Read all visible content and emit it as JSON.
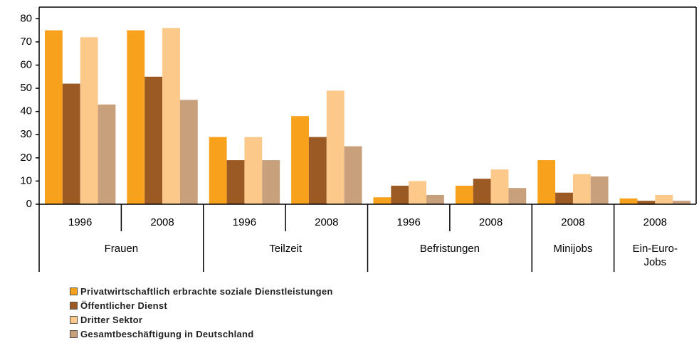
{
  "chart_data": {
    "type": "bar",
    "groups": [
      {
        "name": "Frauen",
        "categories": [
          "1996",
          "2008"
        ]
      },
      {
        "name": "Teilzeit",
        "categories": [
          "1996",
          "2008"
        ]
      },
      {
        "name": "Befristungen",
        "categories": [
          "1996",
          "2008"
        ]
      },
      {
        "name": "Minijobs",
        "categories": [
          "2008"
        ]
      },
      {
        "name": "Ein-Euro-Jobs",
        "categories": [
          "2008"
        ]
      }
    ],
    "series": [
      {
        "name": "Privatwirtschaftlich erbrachte soziale Dienstleistungen",
        "color": "#f7a11c",
        "values": [
          75,
          75,
          29,
          38,
          3,
          8,
          19,
          2.5
        ]
      },
      {
        "name": "Öffentlicher Dienst",
        "color": "#9b5a24",
        "values": [
          52,
          55,
          19,
          29,
          8,
          11,
          5,
          1.5
        ]
      },
      {
        "name": "Dritter Sektor",
        "color": "#fcc98a",
        "values": [
          72,
          76,
          29,
          49,
          10,
          15,
          13,
          4
        ]
      },
      {
        "name": "Gesamtbeschäftigung in Deutschland",
        "color": "#c8a07c",
        "values": [
          43,
          45,
          19,
          25,
          4,
          7,
          12,
          1.5
        ]
      }
    ],
    "ylim": [
      0,
      85
    ],
    "yticks": [
      0,
      10,
      20,
      30,
      40,
      50,
      60,
      70,
      80
    ],
    "legend": "bottom-left"
  }
}
